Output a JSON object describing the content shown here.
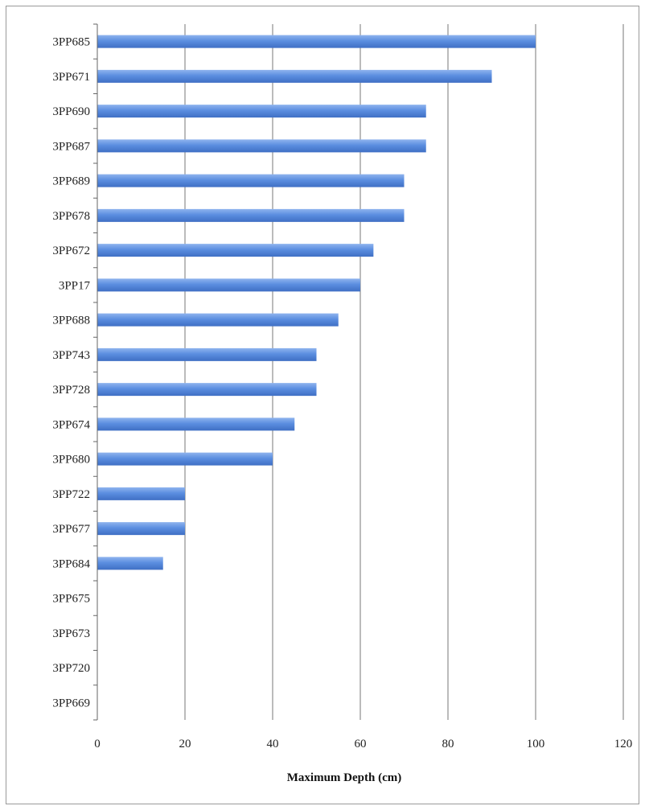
{
  "chart_data": {
    "type": "bar",
    "orientation": "horizontal",
    "title": "",
    "xlabel": "Maximum Depth (cm)",
    "ylabel": "",
    "xlim": [
      0,
      120
    ],
    "xticks": [
      0,
      20,
      40,
      60,
      80,
      100,
      120
    ],
    "grid": "vertical",
    "legend": "none",
    "bar_color": "#5b8ee0",
    "categories": [
      "3PP685",
      "3PP671",
      "3PP690",
      "3PP687",
      "3PP689",
      "3PP678",
      "3PP672",
      "3PP17",
      "3PP688",
      "3PP743",
      "3PP728",
      "3PP674",
      "3PP680",
      "3PP722",
      "3PP677",
      "3PP684",
      "3PP675",
      "3PP673",
      "3PP720",
      "3PP669"
    ],
    "values": [
      100,
      90,
      75,
      75,
      70,
      70,
      63,
      60,
      55,
      50,
      50,
      45,
      40,
      20,
      20,
      15,
      0,
      0,
      0,
      0
    ]
  }
}
